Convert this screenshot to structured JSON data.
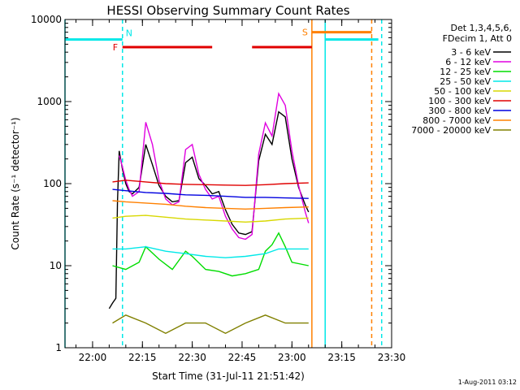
{
  "chart_data": {
    "type": "line",
    "title": "HESSI Observing Summary Count Rates",
    "xlabel": "Start Time (31-Jul-11 21:51:42)",
    "ylabel": "Count Rate (s⁻¹ detector⁻¹)",
    "y_scale": "log",
    "ylim": [
      1,
      10000
    ],
    "xlim": [
      "21:51:42",
      "23:30:00"
    ],
    "x_ticks": [
      "22:00",
      "22:15",
      "22:30",
      "22:45",
      "23:00",
      "23:15",
      "23:30"
    ],
    "y_ticks": [
      "1",
      "10",
      "100",
      "1000",
      "10000"
    ],
    "legend_header": [
      "Det 1,3,4,5,6,",
      "FDecim 1, Att 0"
    ],
    "legend_position": "right",
    "footer_date": "1-Aug-2011 03:12",
    "series": [
      {
        "name": "3 - 6 keV",
        "color": "#000000",
        "x": [
          "22:05",
          "22:06",
          "22:07",
          "22:07:30",
          "22:08",
          "22:09",
          "22:10",
          "22:11",
          "22:12",
          "22:14",
          "22:16",
          "22:18",
          "22:20",
          "22:22",
          "22:24",
          "22:26",
          "22:28",
          "22:30",
          "22:32",
          "22:34",
          "22:36",
          "22:38",
          "22:40",
          "22:42",
          "22:44",
          "22:46",
          "22:48",
          "22:50",
          "22:52",
          "22:54",
          "22:56",
          "22:58",
          "23:00",
          "23:02",
          "23:04",
          "23:05"
        ],
        "values": [
          3,
          3.5,
          4,
          60,
          250,
          150,
          100,
          80,
          75,
          90,
          300,
          170,
          95,
          70,
          60,
          62,
          180,
          210,
          115,
          95,
          75,
          80,
          48,
          32,
          25,
          24,
          26,
          190,
          400,
          300,
          750,
          650,
          200,
          90,
          55,
          45
        ]
      },
      {
        "name": "6 - 12 keV",
        "color": "#e000e0",
        "x": [
          "22:08",
          "22:09",
          "22:10",
          "22:11",
          "22:12",
          "22:14",
          "22:16",
          "22:18",
          "22:20",
          "22:22",
          "22:24",
          "22:26",
          "22:28",
          "22:30",
          "22:32",
          "22:34",
          "22:36",
          "22:38",
          "22:40",
          "22:42",
          "22:44",
          "22:46",
          "22:48",
          "22:50",
          "22:52",
          "22:54",
          "22:56",
          "22:58",
          "23:00",
          "23:02",
          "23:04",
          "23:05"
        ],
        "values": [
          220,
          160,
          110,
          85,
          70,
          80,
          560,
          300,
          110,
          65,
          55,
          60,
          260,
          300,
          130,
          85,
          65,
          70,
          40,
          28,
          22,
          21,
          24,
          230,
          550,
          380,
          1250,
          900,
          250,
          95,
          45,
          33
        ]
      },
      {
        "name": "12 - 25 keV",
        "color": "#00dd00",
        "x": [
          "22:06",
          "22:10",
          "22:14",
          "22:16",
          "22:20",
          "22:24",
          "22:28",
          "22:30",
          "22:34",
          "22:38",
          "22:42",
          "22:46",
          "22:50",
          "22:52",
          "22:54",
          "22:56",
          "22:58",
          "23:00",
          "23:05"
        ],
        "values": [
          10,
          9,
          11,
          17,
          12,
          9,
          15,
          13,
          9,
          8.5,
          7.5,
          8,
          9,
          15,
          18,
          25,
          17,
          11,
          10
        ]
      },
      {
        "name": "25 - 50 keV",
        "color": "#00e8e8",
        "x": [
          "22:06",
          "22:10",
          "22:16",
          "22:22",
          "22:28",
          "22:34",
          "22:40",
          "22:46",
          "22:52",
          "22:56",
          "23:00",
          "23:05"
        ],
        "values": [
          16,
          16,
          17,
          15,
          14,
          13,
          12.5,
          13,
          14,
          16,
          16,
          16
        ]
      },
      {
        "name": "50 - 100 keV",
        "color": "#d8d800",
        "x": [
          "22:06",
          "22:10",
          "22:16",
          "22:22",
          "22:28",
          "22:34",
          "22:40",
          "22:46",
          "22:52",
          "22:58",
          "23:05"
        ],
        "values": [
          38,
          40,
          41,
          39,
          37,
          36,
          35,
          34,
          35,
          37,
          38
        ]
      },
      {
        "name": "100 - 300 keV",
        "color": "#e00000",
        "x": [
          "22:06",
          "22:10",
          "22:16",
          "22:22",
          "22:28",
          "22:34",
          "22:40",
          "22:46",
          "22:52",
          "22:58",
          "23:05"
        ],
        "values": [
          105,
          110,
          105,
          100,
          98,
          97,
          96,
          95,
          97,
          100,
          102
        ]
      },
      {
        "name": "300 - 800 keV",
        "color": "#0000e0",
        "x": [
          "22:06",
          "22:10",
          "22:16",
          "22:22",
          "22:28",
          "22:34",
          "22:40",
          "22:46",
          "22:52",
          "22:58",
          "23:05"
        ],
        "values": [
          85,
          82,
          78,
          76,
          73,
          72,
          70,
          68,
          68,
          67,
          66
        ]
      },
      {
        "name": "800 - 7000 keV",
        "color": "#ff8000",
        "x": [
          "22:06",
          "22:10",
          "22:16",
          "22:22",
          "22:28",
          "22:34",
          "22:40",
          "22:46",
          "22:52",
          "22:58",
          "23:05"
        ],
        "values": [
          62,
          60,
          58,
          56,
          53,
          51,
          50,
          49,
          50,
          51,
          52
        ]
      },
      {
        "name": "7000 - 20000 keV",
        "color": "#808000",
        "x": [
          "22:06",
          "22:10",
          "22:16",
          "22:22",
          "22:28",
          "22:34",
          "22:40",
          "22:46",
          "22:52",
          "22:58",
          "23:05"
        ],
        "values": [
          2,
          2.5,
          2,
          1.5,
          2,
          2,
          1.5,
          2,
          2.5,
          2,
          2
        ]
      }
    ],
    "annotations": [
      {
        "label": "N",
        "color": "#00e8e8",
        "x": "22:09"
      },
      {
        "label": "F",
        "color": "#e00000",
        "x": "22:09"
      },
      {
        "label": "S",
        "color": "#ff8000",
        "x": "23:06"
      }
    ],
    "state_bars": [
      {
        "name": "night",
        "color": "#00e8e8",
        "level": 5700,
        "segments": [
          [
            "21:51:42",
            "22:09"
          ],
          [
            "23:10",
            "23:26"
          ]
        ]
      },
      {
        "name": "flare",
        "color": "#e00000",
        "level": 4600,
        "segments": [
          [
            "22:09",
            "22:36"
          ],
          [
            "22:48",
            "23:06"
          ]
        ]
      },
      {
        "name": "saa",
        "color": "#ff8000",
        "level": 7000,
        "segments": [
          [
            "23:06",
            "23:24"
          ]
        ]
      }
    ],
    "vlines": [
      {
        "color": "#00e8e8",
        "x": "21:51:42",
        "style": "solid"
      },
      {
        "color": "#00e8e8",
        "x": "22:09",
        "style": "dashed"
      },
      {
        "color": "#00e8e8",
        "x": "23:10",
        "style": "solid"
      },
      {
        "color": "#00e8e8",
        "x": "23:27",
        "style": "dashed"
      },
      {
        "color": "#ff8000",
        "x": "23:06",
        "style": "solid"
      },
      {
        "color": "#ff8000",
        "x": "23:24",
        "style": "dashed"
      }
    ]
  }
}
